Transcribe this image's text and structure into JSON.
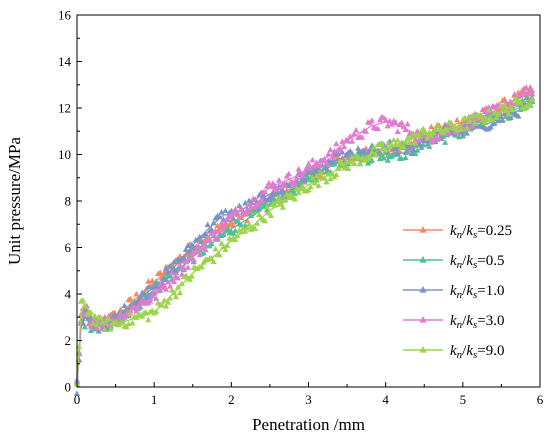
{
  "chart_data": {
    "type": "scatter",
    "xlabel": "Penetration /mm",
    "ylabel": "Unit pressure/MPa",
    "xlim": [
      0,
      6
    ],
    "ylim": [
      0,
      16
    ],
    "xticks": [
      "0",
      "1",
      "2",
      "3",
      "4",
      "5",
      "6"
    ],
    "yticks": [
      "0",
      "2",
      "4",
      "6",
      "8",
      "10",
      "12",
      "14",
      "16"
    ],
    "legend_position": "right",
    "series": [
      {
        "name": "kn/ks=0.25",
        "label": {
          "k1": "k",
          "s1": "n",
          "sep": "/",
          "k2": "k",
          "s2": "s",
          "val": "=0.25"
        },
        "color": "#f08a63",
        "points": [
          [
            0,
            0
          ],
          [
            0.05,
            2.6
          ],
          [
            0.1,
            3.1
          ],
          [
            0.2,
            2.7
          ],
          [
            0.3,
            2.8
          ],
          [
            0.5,
            3.0
          ],
          [
            0.7,
            3.6
          ],
          [
            1.0,
            4.5
          ],
          [
            1.3,
            5.4
          ],
          [
            1.5,
            6.0
          ],
          [
            1.8,
            6.7
          ],
          [
            2.0,
            7.0
          ],
          [
            2.3,
            7.6
          ],
          [
            2.5,
            8.1
          ],
          [
            2.8,
            8.6
          ],
          [
            3.0,
            9.0
          ],
          [
            3.3,
            9.6
          ],
          [
            3.5,
            9.9
          ],
          [
            3.8,
            10.0
          ],
          [
            4.0,
            10.2
          ],
          [
            4.3,
            10.4
          ],
          [
            4.5,
            10.8
          ],
          [
            4.8,
            11.2
          ],
          [
            5.0,
            11.4
          ],
          [
            5.3,
            11.7
          ],
          [
            5.6,
            12.2
          ],
          [
            5.9,
            12.7
          ]
        ]
      },
      {
        "name": "kn/ks=0.5",
        "label": {
          "k1": "k",
          "s1": "n",
          "sep": "/",
          "k2": "k",
          "s2": "s",
          "val": "=0.5"
        },
        "color": "#4fbf9a",
        "points": [
          [
            0,
            0
          ],
          [
            0.05,
            2.7
          ],
          [
            0.1,
            3.0
          ],
          [
            0.2,
            2.6
          ],
          [
            0.3,
            2.6
          ],
          [
            0.5,
            2.8
          ],
          [
            0.7,
            3.3
          ],
          [
            1.0,
            4.2
          ],
          [
            1.3,
            5.0
          ],
          [
            1.5,
            5.6
          ],
          [
            1.8,
            6.3
          ],
          [
            2.0,
            6.8
          ],
          [
            2.3,
            7.4
          ],
          [
            2.5,
            7.9
          ],
          [
            2.8,
            8.5
          ],
          [
            3.0,
            9.0
          ],
          [
            3.3,
            9.5
          ],
          [
            3.5,
            9.8
          ],
          [
            3.8,
            9.9
          ],
          [
            4.0,
            10.0
          ],
          [
            4.3,
            10.1
          ],
          [
            4.5,
            10.5
          ],
          [
            4.8,
            10.8
          ],
          [
            5.0,
            11.0
          ],
          [
            5.3,
            11.4
          ],
          [
            5.6,
            11.8
          ],
          [
            5.9,
            12.3
          ]
        ]
      },
      {
        "name": "kn/ks=1.0",
        "label": {
          "k1": "k",
          "s1": "n",
          "sep": "/",
          "k2": "k",
          "s2": "s",
          "val": "=1.0"
        },
        "color": "#7b93c9",
        "points": [
          [
            0,
            0
          ],
          [
            0.05,
            2.5
          ],
          [
            0.1,
            3.0
          ],
          [
            0.2,
            2.7
          ],
          [
            0.3,
            2.6
          ],
          [
            0.5,
            2.9
          ],
          [
            0.7,
            3.5
          ],
          [
            1.0,
            4.3
          ],
          [
            1.3,
            5.3
          ],
          [
            1.5,
            6.1
          ],
          [
            1.7,
            6.8
          ],
          [
            1.9,
            7.4
          ],
          [
            2.0,
            7.4
          ],
          [
            2.3,
            7.9
          ],
          [
            2.5,
            8.3
          ],
          [
            2.8,
            8.8
          ],
          [
            3.0,
            9.2
          ],
          [
            3.3,
            9.7
          ],
          [
            3.5,
            9.9
          ],
          [
            3.8,
            10.1
          ],
          [
            4.0,
            10.3
          ],
          [
            4.3,
            10.2
          ],
          [
            4.5,
            10.6
          ],
          [
            4.8,
            11.0
          ],
          [
            5.0,
            11.0
          ],
          [
            5.3,
            11.3
          ],
          [
            5.6,
            11.7
          ],
          [
            5.9,
            12.2
          ]
        ]
      },
      {
        "name": "kn/ks=3.0",
        "label": {
          "k1": "k",
          "s1": "n",
          "sep": "/",
          "k2": "k",
          "s2": "s",
          "val": "=3.0"
        },
        "color": "#e27bd0",
        "points": [
          [
            0,
            0
          ],
          [
            0.05,
            2.7
          ],
          [
            0.1,
            3.2
          ],
          [
            0.2,
            2.8
          ],
          [
            0.3,
            2.8
          ],
          [
            0.5,
            2.9
          ],
          [
            0.7,
            3.3
          ],
          [
            1.0,
            3.9
          ],
          [
            1.3,
            4.9
          ],
          [
            1.5,
            5.6
          ],
          [
            1.8,
            6.6
          ],
          [
            2.0,
            7.3
          ],
          [
            2.3,
            8.0
          ],
          [
            2.5,
            8.6
          ],
          [
            2.8,
            9.0
          ],
          [
            3.0,
            9.4
          ],
          [
            3.3,
            10.0
          ],
          [
            3.5,
            10.6
          ],
          [
            3.8,
            11.2
          ],
          [
            4.0,
            11.4
          ],
          [
            4.2,
            11.2
          ],
          [
            4.5,
            10.7
          ],
          [
            4.8,
            11.0
          ],
          [
            5.0,
            11.3
          ],
          [
            5.3,
            11.7
          ],
          [
            5.6,
            12.2
          ],
          [
            5.9,
            12.8
          ]
        ]
      },
      {
        "name": "kn/ks=9.0",
        "label": {
          "k1": "k",
          "s1": "n",
          "sep": "/",
          "k2": "k",
          "s2": "s",
          "val": "=9.0"
        },
        "color": "#9dd44b",
        "points": [
          [
            0,
            0
          ],
          [
            0.05,
            3.2
          ],
          [
            0.1,
            3.6
          ],
          [
            0.2,
            3.0
          ],
          [
            0.3,
            2.7
          ],
          [
            0.5,
            2.7
          ],
          [
            0.7,
            2.9
          ],
          [
            1.0,
            3.2
          ],
          [
            1.3,
            4.2
          ],
          [
            1.5,
            4.9
          ],
          [
            1.8,
            5.7
          ],
          [
            2.0,
            6.3
          ],
          [
            2.3,
            7.0
          ],
          [
            2.5,
            7.6
          ],
          [
            2.8,
            8.2
          ],
          [
            3.0,
            8.7
          ],
          [
            3.3,
            9.2
          ],
          [
            3.5,
            9.6
          ],
          [
            3.8,
            10.0
          ],
          [
            4.0,
            10.3
          ],
          [
            4.3,
            10.6
          ],
          [
            4.5,
            10.9
          ],
          [
            4.8,
            11.1
          ],
          [
            5.0,
            11.3
          ],
          [
            5.3,
            11.6
          ],
          [
            5.6,
            12.0
          ],
          [
            5.9,
            12.4
          ]
        ]
      }
    ]
  }
}
